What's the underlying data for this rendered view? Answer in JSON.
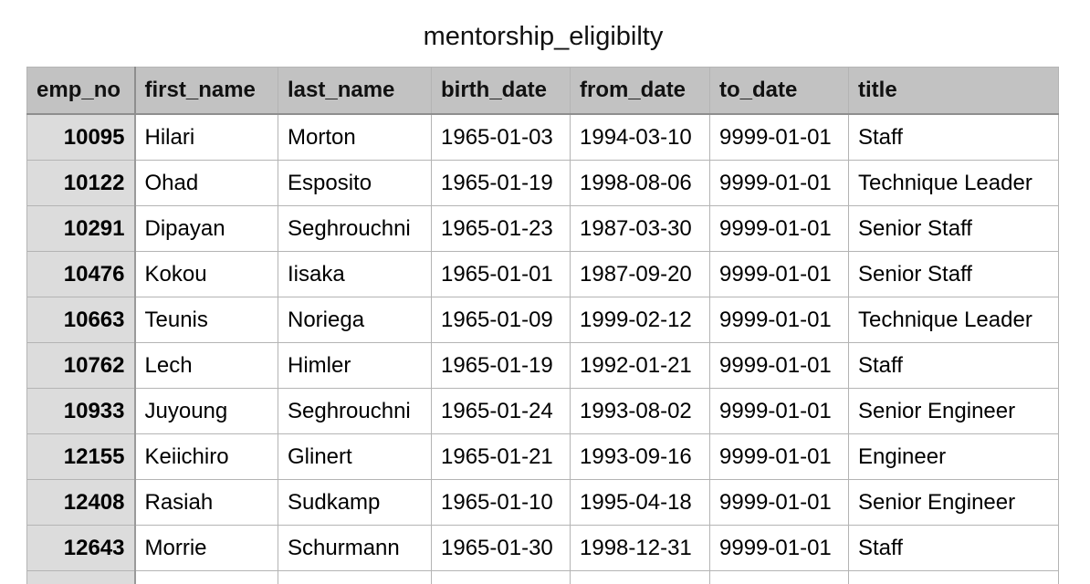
{
  "title": "mentorship_eligibilty",
  "table": {
    "columns": [
      "emp_no",
      "first_name",
      "last_name",
      "birth_date",
      "from_date",
      "to_date",
      "title"
    ],
    "rows": [
      [
        "10095",
        "Hilari",
        "Morton",
        "1965-01-03",
        "1994-03-10",
        "9999-01-01",
        "Staff"
      ],
      [
        "10122",
        "Ohad",
        "Esposito",
        "1965-01-19",
        "1998-08-06",
        "9999-01-01",
        "Technique Leader"
      ],
      [
        "10291",
        "Dipayan",
        "Seghrouchni",
        "1965-01-23",
        "1987-03-30",
        "9999-01-01",
        "Senior Staff"
      ],
      [
        "10476",
        "Kokou",
        "Iisaka",
        "1965-01-01",
        "1987-09-20",
        "9999-01-01",
        "Senior Staff"
      ],
      [
        "10663",
        "Teunis",
        "Noriega",
        "1965-01-09",
        "1999-02-12",
        "9999-01-01",
        "Technique Leader"
      ],
      [
        "10762",
        "Lech",
        "Himler",
        "1965-01-19",
        "1992-01-21",
        "9999-01-01",
        "Staff"
      ],
      [
        "10933",
        "Juyoung",
        "Seghrouchni",
        "1965-01-24",
        "1993-08-02",
        "9999-01-01",
        "Senior Engineer"
      ],
      [
        "12155",
        "Keiichiro",
        "Glinert",
        "1965-01-21",
        "1993-09-16",
        "9999-01-01",
        "Engineer"
      ],
      [
        "12408",
        "Rasiah",
        "Sudkamp",
        "1965-01-10",
        "1995-04-18",
        "9999-01-01",
        "Senior Engineer"
      ],
      [
        "12643",
        "Morrie",
        "Schurmann",
        "1965-01-30",
        "1998-12-31",
        "9999-01-01",
        "Staff"
      ]
    ]
  }
}
